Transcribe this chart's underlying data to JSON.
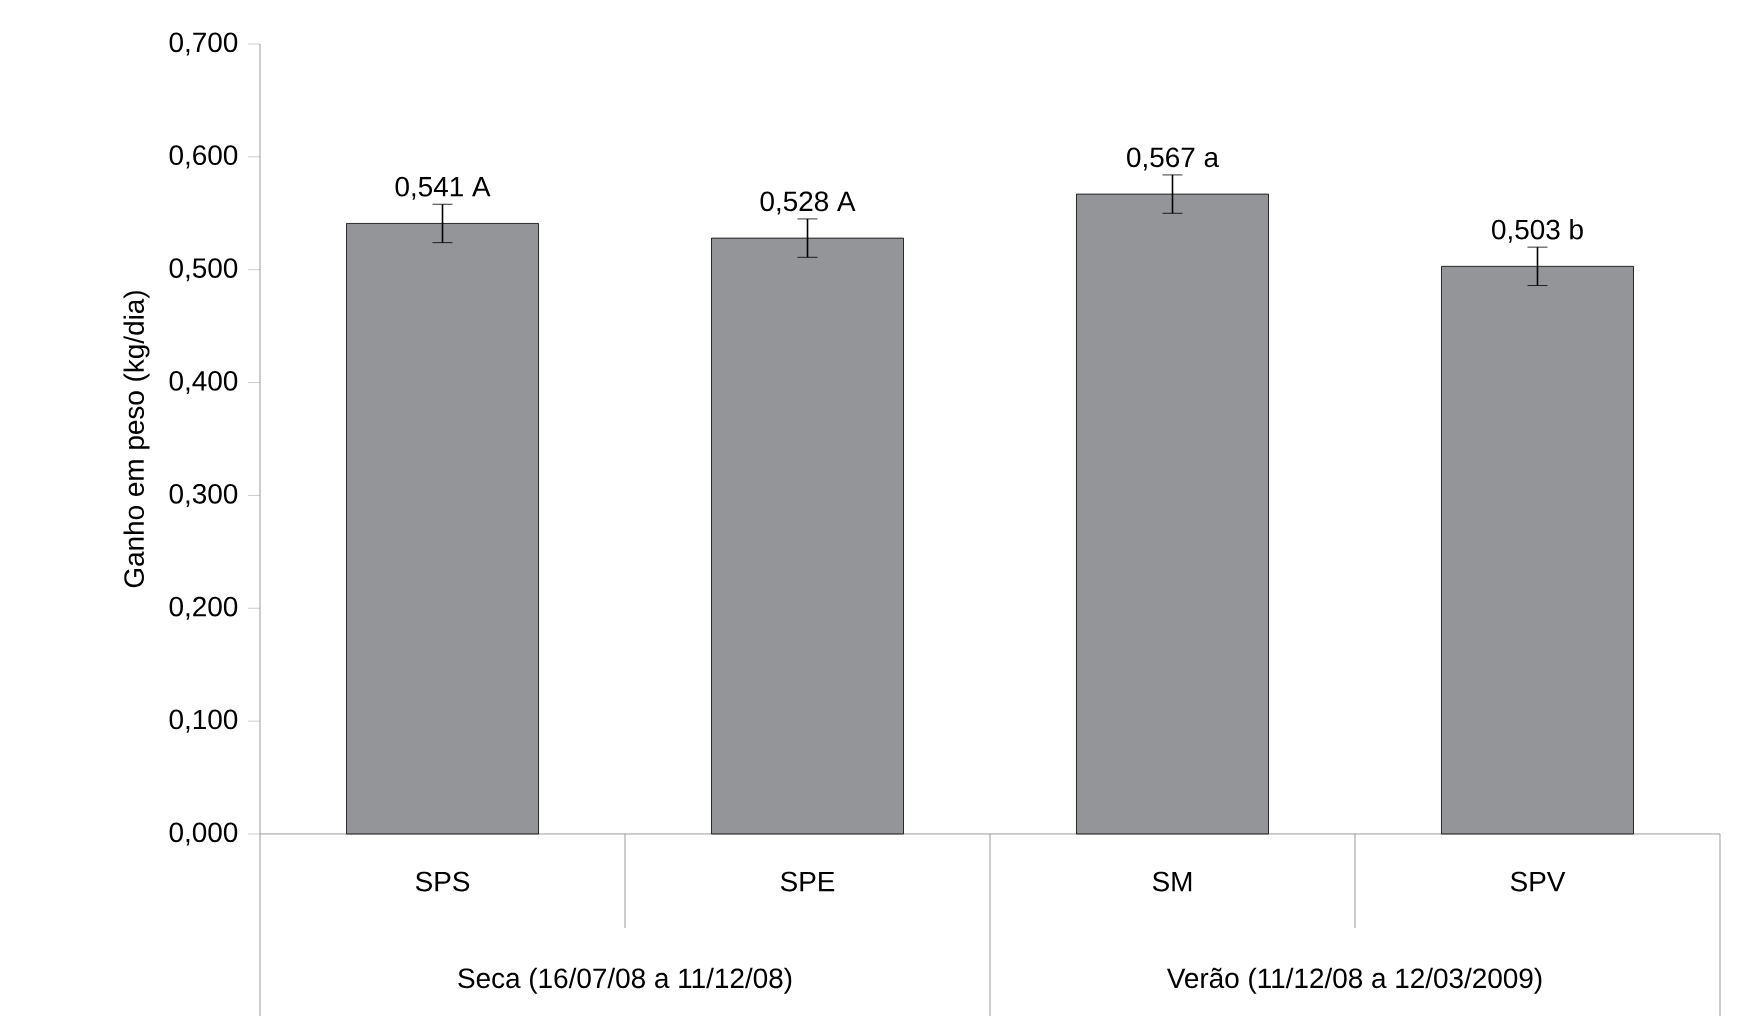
{
  "chart_data": {
    "type": "bar",
    "ylabel": "Ganho em peso (kg/dia)",
    "categories": [
      "SPS",
      "SPE",
      "SM",
      "SPV"
    ],
    "values": [
      0.541,
      0.528,
      0.567,
      0.503
    ],
    "errors": [
      0.017,
      0.017,
      0.017,
      0.017
    ],
    "value_labels": [
      "0,541 A",
      "0,528 A",
      "0,567 a",
      "0,503 b"
    ],
    "color": "#939598",
    "ylim": [
      0,
      0.7
    ],
    "yticks": [
      {
        "value": 0,
        "label": "0,000"
      },
      {
        "value": 0.1,
        "label": "0,100"
      },
      {
        "value": 0.2,
        "label": "0,200"
      },
      {
        "value": 0.3,
        "label": "0,300"
      },
      {
        "value": 0.4,
        "label": "0,400"
      },
      {
        "value": 0.5,
        "label": "0,500"
      },
      {
        "value": 0.6,
        "label": "0,600"
      },
      {
        "value": 0.7,
        "label": "0,700"
      }
    ],
    "annotations": [
      "Seca (16/07/08 a 11/12/08)",
      "Verão (11/12/08 a 12/03/2009)"
    ],
    "grid": false
  }
}
